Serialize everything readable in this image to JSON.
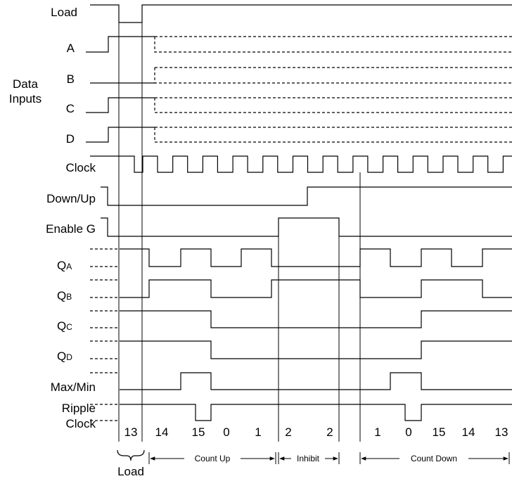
{
  "signals": {
    "load": "Load",
    "a": "A",
    "b": "B",
    "data_inputs_line1": "Data",
    "data_inputs_line2": "Inputs",
    "c": "C",
    "d": "D",
    "clock": "Clock",
    "down_up": "Down/Up",
    "enable_g": "Enable G",
    "qa_main": "Q",
    "qa_sub": "A",
    "qb_main": "Q",
    "qb_sub": "B",
    "qc_main": "Q",
    "qc_sub": "C",
    "qd_main": "Q",
    "qd_sub": "D",
    "max_min": "Max/Min",
    "ripple_line1": "Ripple",
    "ripple_line2": "Clock"
  },
  "count_values": [
    "13",
    "14",
    "15",
    "0",
    "1",
    "2",
    "2",
    "1",
    "0",
    "15",
    "14",
    "13"
  ],
  "phases": {
    "count_up": "Count Up",
    "inhibit": "Inhibit",
    "count_down": "Count Down"
  },
  "load_bracket_label": "Load"
}
